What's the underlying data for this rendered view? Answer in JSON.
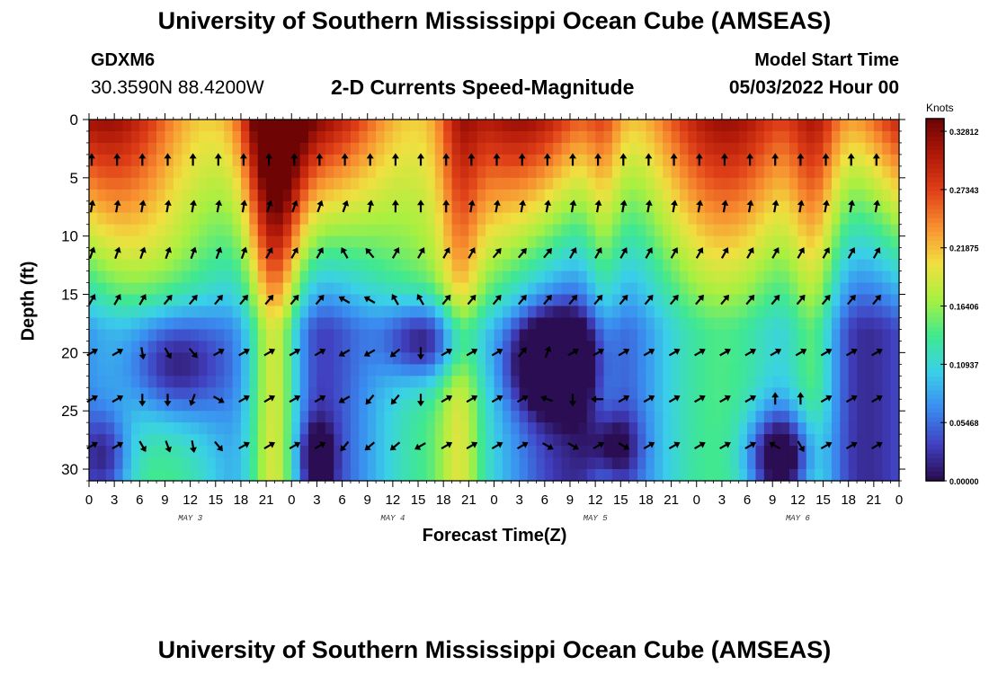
{
  "header": {
    "title": "University of Southern Mississippi Ocean Cube (AMSEAS)",
    "station": "GDXM6",
    "coords": "30.3590N  88.4200W",
    "subtitle": "2-D Currents Speed-Magnitude",
    "model_start_label": "Model Start Time",
    "model_start_value": "05/03/2022 Hour 00"
  },
  "footer": {
    "title": "University of Southern Mississippi Ocean Cube (AMSEAS)"
  },
  "chart_data": {
    "type": "heatmap",
    "title": "2-D Currents Speed-Magnitude",
    "xlabel": "Forecast Time(Z)",
    "ylabel": "Depth (ft)",
    "x_ticks": [
      "0",
      "3",
      "6",
      "9",
      "12",
      "15",
      "18",
      "21",
      "0",
      "3",
      "6",
      "9",
      "12",
      "15",
      "18",
      "21",
      "0",
      "3",
      "6",
      "9",
      "12",
      "15",
      "18",
      "21",
      "0",
      "3",
      "6",
      "9",
      "12",
      "15",
      "18",
      "21",
      "0"
    ],
    "x_range_hours": [
      0,
      96
    ],
    "day_labels": [
      "MAY 3",
      "MAY 4",
      "MAY 5",
      "MAY 6"
    ],
    "y_ticks": [
      0,
      5,
      10,
      15,
      20,
      25,
      30
    ],
    "y_range_ft": [
      0,
      31
    ],
    "arrow_depths_ft": [
      3.5,
      7.5,
      11.5,
      15.5,
      20,
      24,
      28
    ],
    "arrow_times_hours": [
      0,
      3,
      6,
      9,
      12,
      15,
      18,
      21,
      24,
      27,
      30,
      33,
      36,
      39,
      42,
      45,
      48,
      51,
      54,
      57,
      60,
      63,
      66,
      69,
      72,
      75,
      78,
      81,
      84,
      87,
      90,
      93
    ],
    "arrow_directions_deg": [
      [
        0,
        0,
        0,
        0,
        0,
        0,
        0,
        0,
        0,
        0,
        0,
        0,
        0,
        0,
        0,
        0,
        0,
        0,
        0,
        0,
        0,
        0,
        0,
        0,
        0,
        0,
        0,
        0,
        0,
        0,
        0,
        0
      ],
      [
        10,
        10,
        10,
        10,
        10,
        10,
        10,
        20,
        20,
        20,
        20,
        10,
        0,
        0,
        0,
        10,
        10,
        10,
        10,
        10,
        10,
        10,
        10,
        10,
        10,
        10,
        10,
        10,
        10,
        10,
        10,
        10
      ],
      [
        20,
        20,
        20,
        20,
        20,
        20,
        20,
        30,
        30,
        30,
        330,
        320,
        30,
        30,
        30,
        30,
        40,
        40,
        40,
        30,
        30,
        30,
        30,
        30,
        30,
        30,
        30,
        30,
        30,
        30,
        30,
        30
      ],
      [
        30,
        30,
        30,
        40,
        40,
        40,
        40,
        40,
        40,
        40,
        300,
        300,
        330,
        330,
        40,
        40,
        40,
        40,
        40,
        40,
        40,
        40,
        40,
        40,
        40,
        40,
        40,
        40,
        40,
        40,
        40,
        40
      ],
      [
        60,
        60,
        170,
        150,
        140,
        60,
        60,
        60,
        60,
        60,
        240,
        240,
        230,
        180,
        60,
        60,
        60,
        40,
        20,
        60,
        60,
        60,
        60,
        60,
        60,
        60,
        60,
        60,
        60,
        60,
        60,
        60
      ],
      [
        60,
        60,
        180,
        180,
        200,
        120,
        60,
        60,
        60,
        60,
        240,
        220,
        220,
        180,
        60,
        60,
        60,
        60,
        290,
        180,
        270,
        60,
        60,
        60,
        60,
        60,
        60,
        0,
        0,
        60,
        60,
        60
      ],
      [
        60,
        60,
        150,
        160,
        170,
        140,
        60,
        60,
        60,
        60,
        220,
        230,
        230,
        240,
        60,
        60,
        60,
        60,
        120,
        120,
        60,
        120,
        60,
        60,
        60,
        60,
        60,
        300,
        150,
        60,
        60,
        60
      ]
    ],
    "colorbar": {
      "title": "Knots",
      "min": 0,
      "max": 0.34,
      "tick_values": [
        0.0,
        0.05468,
        0.10937,
        0.16406,
        0.21875,
        0.27343,
        0.32812
      ],
      "tick_labels": [
        "0.00000",
        "0.05468",
        "0.10937",
        "0.16406",
        "0.21875",
        "0.27343",
        "0.32812"
      ],
      "colors": [
        "#2a0a4c",
        "#4040c0",
        "#3a8cf0",
        "#3ad0e8",
        "#40e890",
        "#a8f040",
        "#f0e040",
        "#f89030",
        "#e04018",
        "#b01808",
        "#6a0404"
      ]
    }
  }
}
